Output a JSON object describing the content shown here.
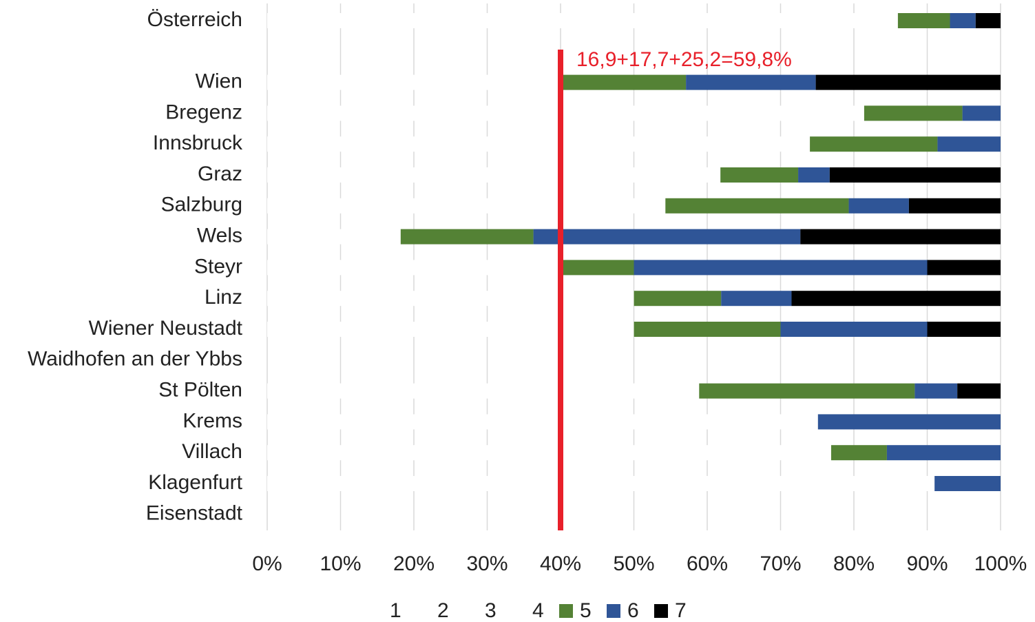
{
  "chart_data": {
    "type": "stacked_barh",
    "categories": [
      "Österreich",
      null,
      "Wien",
      "Bregenz",
      "Innsbruck",
      "Graz",
      "Salzburg",
      "Wels",
      "Steyr",
      "Linz",
      "Wiener Neustadt",
      "Waidhofen an der Ybbs",
      "St Pölten",
      "Krems",
      "Villach",
      "Klagenfurt",
      "Eisenstadt"
    ],
    "series": [
      {
        "name": "1",
        "color": "#ffffff",
        "values": [
          86.0,
          null,
          40.2,
          81.4,
          74.0,
          61.8,
          54.3,
          18.2,
          40.0,
          50.0,
          50.0,
          null,
          58.9,
          75.1,
          76.9,
          91.0,
          null
        ]
      },
      {
        "name": "2",
        "color": "#ffffff",
        "values": [
          0,
          null,
          0,
          0,
          0,
          0,
          0,
          0,
          0,
          0,
          0,
          null,
          0,
          0,
          0,
          0,
          null
        ]
      },
      {
        "name": "3",
        "color": "#ffffff",
        "values": [
          0,
          null,
          0,
          0,
          0,
          0,
          0,
          0,
          0,
          0,
          0,
          null,
          0,
          0,
          0,
          0,
          null
        ]
      },
      {
        "name": "4",
        "color": "#ffffff",
        "values": [
          0,
          null,
          0,
          0,
          0,
          0,
          0,
          0,
          0,
          0,
          0,
          null,
          0,
          0,
          0,
          0,
          null
        ]
      },
      {
        "name": "5",
        "color": "#548235",
        "values": [
          7.1,
          null,
          16.9,
          13.4,
          17.4,
          10.6,
          25.0,
          18.1,
          10.0,
          11.9,
          20.0,
          null,
          29.4,
          0,
          7.6,
          0,
          null
        ]
      },
      {
        "name": "6",
        "color": "#2f5597",
        "values": [
          3.5,
          null,
          17.7,
          5.2,
          8.6,
          4.3,
          8.2,
          36.4,
          40.0,
          9.6,
          20.0,
          null,
          5.8,
          24.9,
          15.5,
          9.0,
          null
        ]
      },
      {
        "name": "7",
        "color": "#000000",
        "values": [
          3.4,
          null,
          25.2,
          0,
          0,
          23.3,
          12.5,
          27.3,
          10.0,
          28.5,
          10.0,
          null,
          5.9,
          0,
          0,
          0,
          null
        ]
      }
    ],
    "xlim": [
      0,
      100
    ],
    "xticks": [
      {
        "value": 0,
        "label": "0%"
      },
      {
        "value": 10,
        "label": "10%"
      },
      {
        "value": 20,
        "label": "20%"
      },
      {
        "value": 30,
        "label": "30%"
      },
      {
        "value": 40,
        "label": "40%"
      },
      {
        "value": 50,
        "label": "50%"
      },
      {
        "value": 60,
        "label": "60%"
      },
      {
        "value": 70,
        "label": "70%"
      },
      {
        "value": 80,
        "label": "80%"
      },
      {
        "value": 90,
        "label": "90%"
      },
      {
        "value": 100,
        "label": "100%"
      }
    ],
    "grid": true,
    "reference_line": {
      "value": 40,
      "color": "#e8202a",
      "label": "16,9+17,7+25,2=59,8%"
    },
    "legend": "bottom"
  }
}
